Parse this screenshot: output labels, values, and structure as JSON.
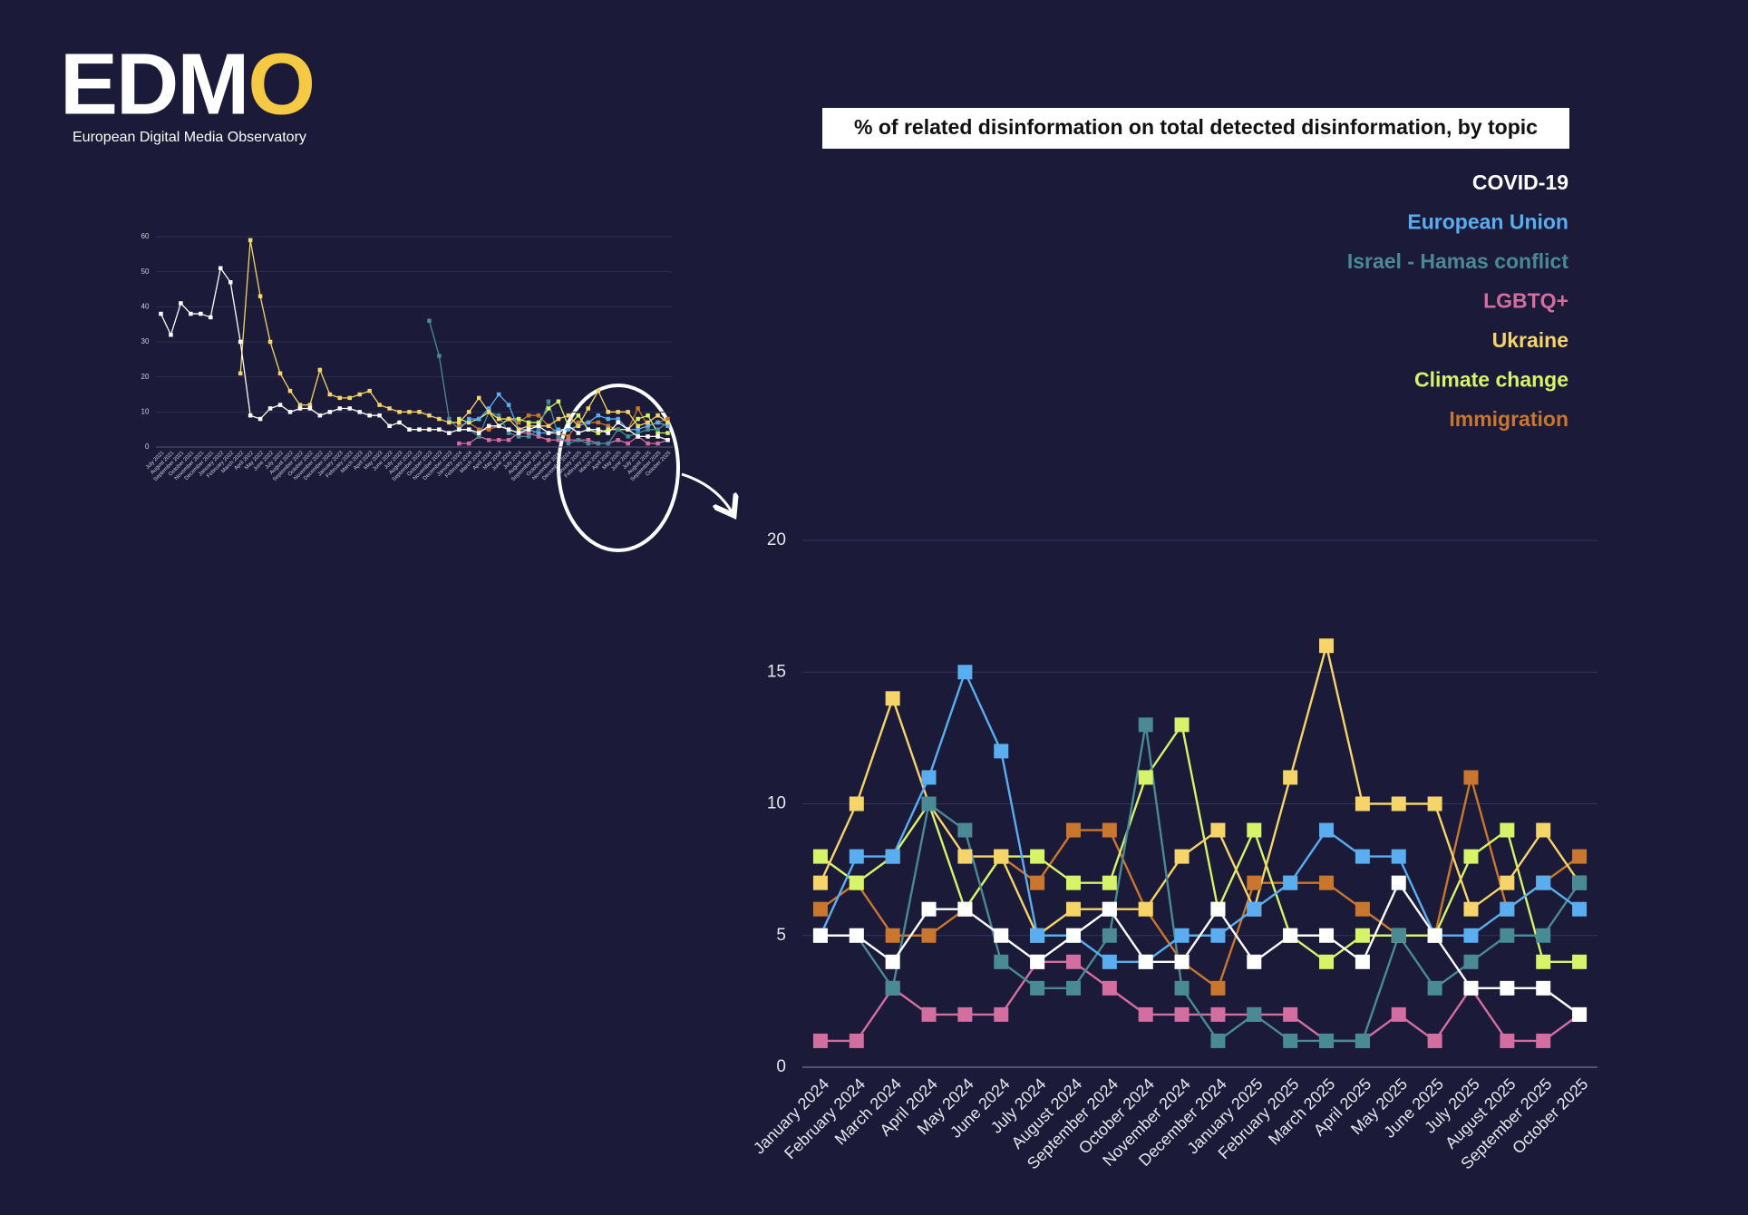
{
  "logo": {
    "name": "EDMO",
    "tagline": "European Digital Media Observatory"
  },
  "chart_data": [
    {
      "type": "line",
      "title": "% of related disinformation on total detected disinformation, by topic",
      "categories": [
        "January 2024",
        "February 2024",
        "March 2024",
        "April 2024",
        "May 2024",
        "June 2024",
        "July 2024",
        "August 2024",
        "September 2024",
        "October 2024",
        "November 2024",
        "December 2024",
        "January 2025",
        "February 2025",
        "March 2025",
        "April 2025",
        "May 2025",
        "June 2025",
        "July 2025",
        "August 2025",
        "September 2025",
        "October 2025"
      ],
      "series": [
        {
          "name": "Immigration",
          "color": "#c9772e",
          "values": [
            6,
            7,
            5,
            5,
            6,
            8,
            7,
            9,
            9,
            6,
            4,
            3,
            7,
            7,
            7,
            6,
            5,
            5,
            11,
            6,
            7,
            8
          ]
        },
        {
          "name": "Climate change",
          "color": "#d6f36a",
          "values": [
            8,
            7,
            8,
            10,
            6,
            8,
            8,
            7,
            7,
            11,
            13,
            6,
            9,
            5,
            4,
            5,
            5,
            5,
            8,
            9,
            4,
            4
          ]
        },
        {
          "name": "Ukraine",
          "color": "#f5d56a",
          "values": [
            7,
            10,
            14,
            10,
            8,
            8,
            5,
            6,
            6,
            6,
            8,
            9,
            6,
            11,
            16,
            10,
            10,
            10,
            6,
            7,
            9,
            7
          ]
        },
        {
          "name": "LGBTQ+",
          "color": "#d36ea0",
          "values": [
            1,
            1,
            3,
            2,
            2,
            2,
            4,
            4,
            3,
            2,
            2,
            2,
            2,
            2,
            1,
            1,
            2,
            1,
            3,
            1,
            1,
            2
          ]
        },
        {
          "name": "Israel - Hamas conflict",
          "color": "#4a8a95",
          "values": [
            5,
            5,
            3,
            10,
            9,
            4,
            3,
            3,
            5,
            13,
            3,
            1,
            2,
            1,
            1,
            1,
            5,
            3,
            4,
            5,
            5,
            7
          ]
        },
        {
          "name": "European Union",
          "color": "#5aaeef",
          "values": [
            5,
            8,
            8,
            11,
            15,
            12,
            5,
            5,
            4,
            4,
            5,
            5,
            6,
            7,
            9,
            8,
            8,
            5,
            5,
            6,
            7,
            6
          ]
        },
        {
          "name": "COVID-19",
          "color": "#ffffff",
          "values": [
            5,
            5,
            4,
            6,
            6,
            5,
            4,
            5,
            6,
            4,
            4,
            6,
            4,
            5,
            5,
            4,
            7,
            5,
            3,
            3,
            3,
            2
          ]
        }
      ],
      "ylim": [
        0,
        20
      ],
      "yticks": [
        0,
        5,
        10,
        15,
        20
      ],
      "grid": true,
      "legend": "top-right"
    },
    {
      "type": "line",
      "categories": [
        "July 2021",
        "August 2021",
        "September 2021",
        "October 2021",
        "November 2021",
        "December 2021",
        "January 2022",
        "February 2022",
        "March 2022",
        "April 2022",
        "May 2022",
        "June 2022",
        "July 2022",
        "August 2022",
        "September 2022",
        "October 2022",
        "November 2022",
        "December 2022",
        "January 2023",
        "February 2023",
        "March 2023",
        "April 2023",
        "May 2023",
        "June 2023",
        "July 2023",
        "August 2023",
        "September 2023",
        "October 2023",
        "November 2023",
        "December 2023",
        "January 2024",
        "February 2024",
        "March 2024",
        "April 2024",
        "May 2024",
        "June 2024",
        "July 2024",
        "August 2024",
        "September 2024",
        "October 2024",
        "November 2024",
        "December 2024",
        "January 2025",
        "February 2025",
        "March 2025",
        "April 2025",
        "May 2025",
        "June 2025",
        "July 2025",
        "August 2025",
        "September 2025",
        "October 2025"
      ],
      "series": [
        {
          "color": "#c9772e",
          "values": [
            null,
            null,
            null,
            null,
            null,
            null,
            null,
            null,
            null,
            null,
            null,
            null,
            null,
            null,
            null,
            null,
            null,
            null,
            null,
            null,
            null,
            null,
            null,
            null,
            null,
            null,
            null,
            null,
            null,
            null,
            6,
            7,
            5,
            5,
            6,
            8,
            7,
            9,
            9,
            6,
            4,
            3,
            7,
            7,
            7,
            6,
            5,
            5,
            11,
            6,
            7,
            8
          ]
        },
        {
          "color": "#d6f36a",
          "values": [
            null,
            null,
            null,
            null,
            null,
            null,
            null,
            null,
            null,
            null,
            null,
            null,
            null,
            null,
            null,
            null,
            null,
            null,
            null,
            null,
            null,
            null,
            null,
            null,
            null,
            null,
            null,
            null,
            null,
            null,
            8,
            7,
            8,
            10,
            6,
            8,
            8,
            7,
            7,
            11,
            13,
            6,
            9,
            5,
            4,
            5,
            5,
            5,
            8,
            9,
            4,
            4
          ]
        },
        {
          "color": "#d36ea0",
          "values": [
            null,
            null,
            null,
            null,
            null,
            null,
            null,
            null,
            null,
            null,
            null,
            null,
            null,
            null,
            null,
            null,
            null,
            null,
            null,
            null,
            null,
            null,
            null,
            null,
            null,
            null,
            null,
            null,
            null,
            null,
            1,
            1,
            3,
            2,
            2,
            2,
            4,
            4,
            3,
            2,
            2,
            2,
            2,
            2,
            1,
            1,
            2,
            1,
            3,
            1,
            1,
            2
          ]
        },
        {
          "color": "#5aaeef",
          "values": [
            null,
            null,
            null,
            null,
            null,
            null,
            null,
            null,
            null,
            null,
            null,
            null,
            null,
            null,
            null,
            null,
            null,
            null,
            null,
            null,
            null,
            null,
            null,
            null,
            null,
            null,
            null,
            null,
            null,
            null,
            5,
            8,
            8,
            11,
            15,
            12,
            5,
            5,
            4,
            4,
            5,
            5,
            6,
            7,
            9,
            8,
            8,
            5,
            5,
            6,
            7,
            6
          ]
        },
        {
          "color": "#4a8a95",
          "values": [
            null,
            null,
            null,
            null,
            null,
            null,
            null,
            null,
            null,
            null,
            null,
            null,
            null,
            null,
            null,
            null,
            null,
            null,
            null,
            null,
            null,
            null,
            null,
            null,
            null,
            null,
            null,
            36,
            26,
            8,
            5,
            5,
            3,
            10,
            9,
            4,
            3,
            3,
            5,
            13,
            3,
            1,
            2,
            1,
            1,
            1,
            5,
            3,
            4,
            5,
            5,
            7
          ]
        },
        {
          "color": "#f5d56a",
          "values": [
            null,
            null,
            null,
            null,
            null,
            null,
            null,
            null,
            21,
            59,
            43,
            30,
            21,
            16,
            12,
            12,
            22,
            15,
            14,
            14,
            15,
            16,
            12,
            11,
            10,
            10,
            10,
            9,
            8,
            7,
            7,
            10,
            14,
            10,
            8,
            8,
            5,
            6,
            6,
            6,
            8,
            9,
            6,
            11,
            16,
            10,
            10,
            10,
            6,
            7,
            9,
            7
          ]
        },
        {
          "color": "#ffffff",
          "values": [
            38,
            32,
            41,
            38,
            38,
            37,
            51,
            47,
            30,
            9,
            8,
            11,
            12,
            10,
            11,
            11,
            9,
            10,
            11,
            11,
            10,
            9,
            9,
            6,
            7,
            5,
            5,
            5,
            5,
            4,
            5,
            5,
            4,
            6,
            6,
            5,
            4,
            5,
            6,
            4,
            4,
            6,
            4,
            5,
            5,
            4,
            7,
            5,
            3,
            3,
            3,
            2
          ]
        }
      ],
      "ylim": [
        0,
        60
      ],
      "yticks": [
        0,
        10,
        20,
        30,
        40,
        50,
        60
      ],
      "grid": true
    }
  ]
}
